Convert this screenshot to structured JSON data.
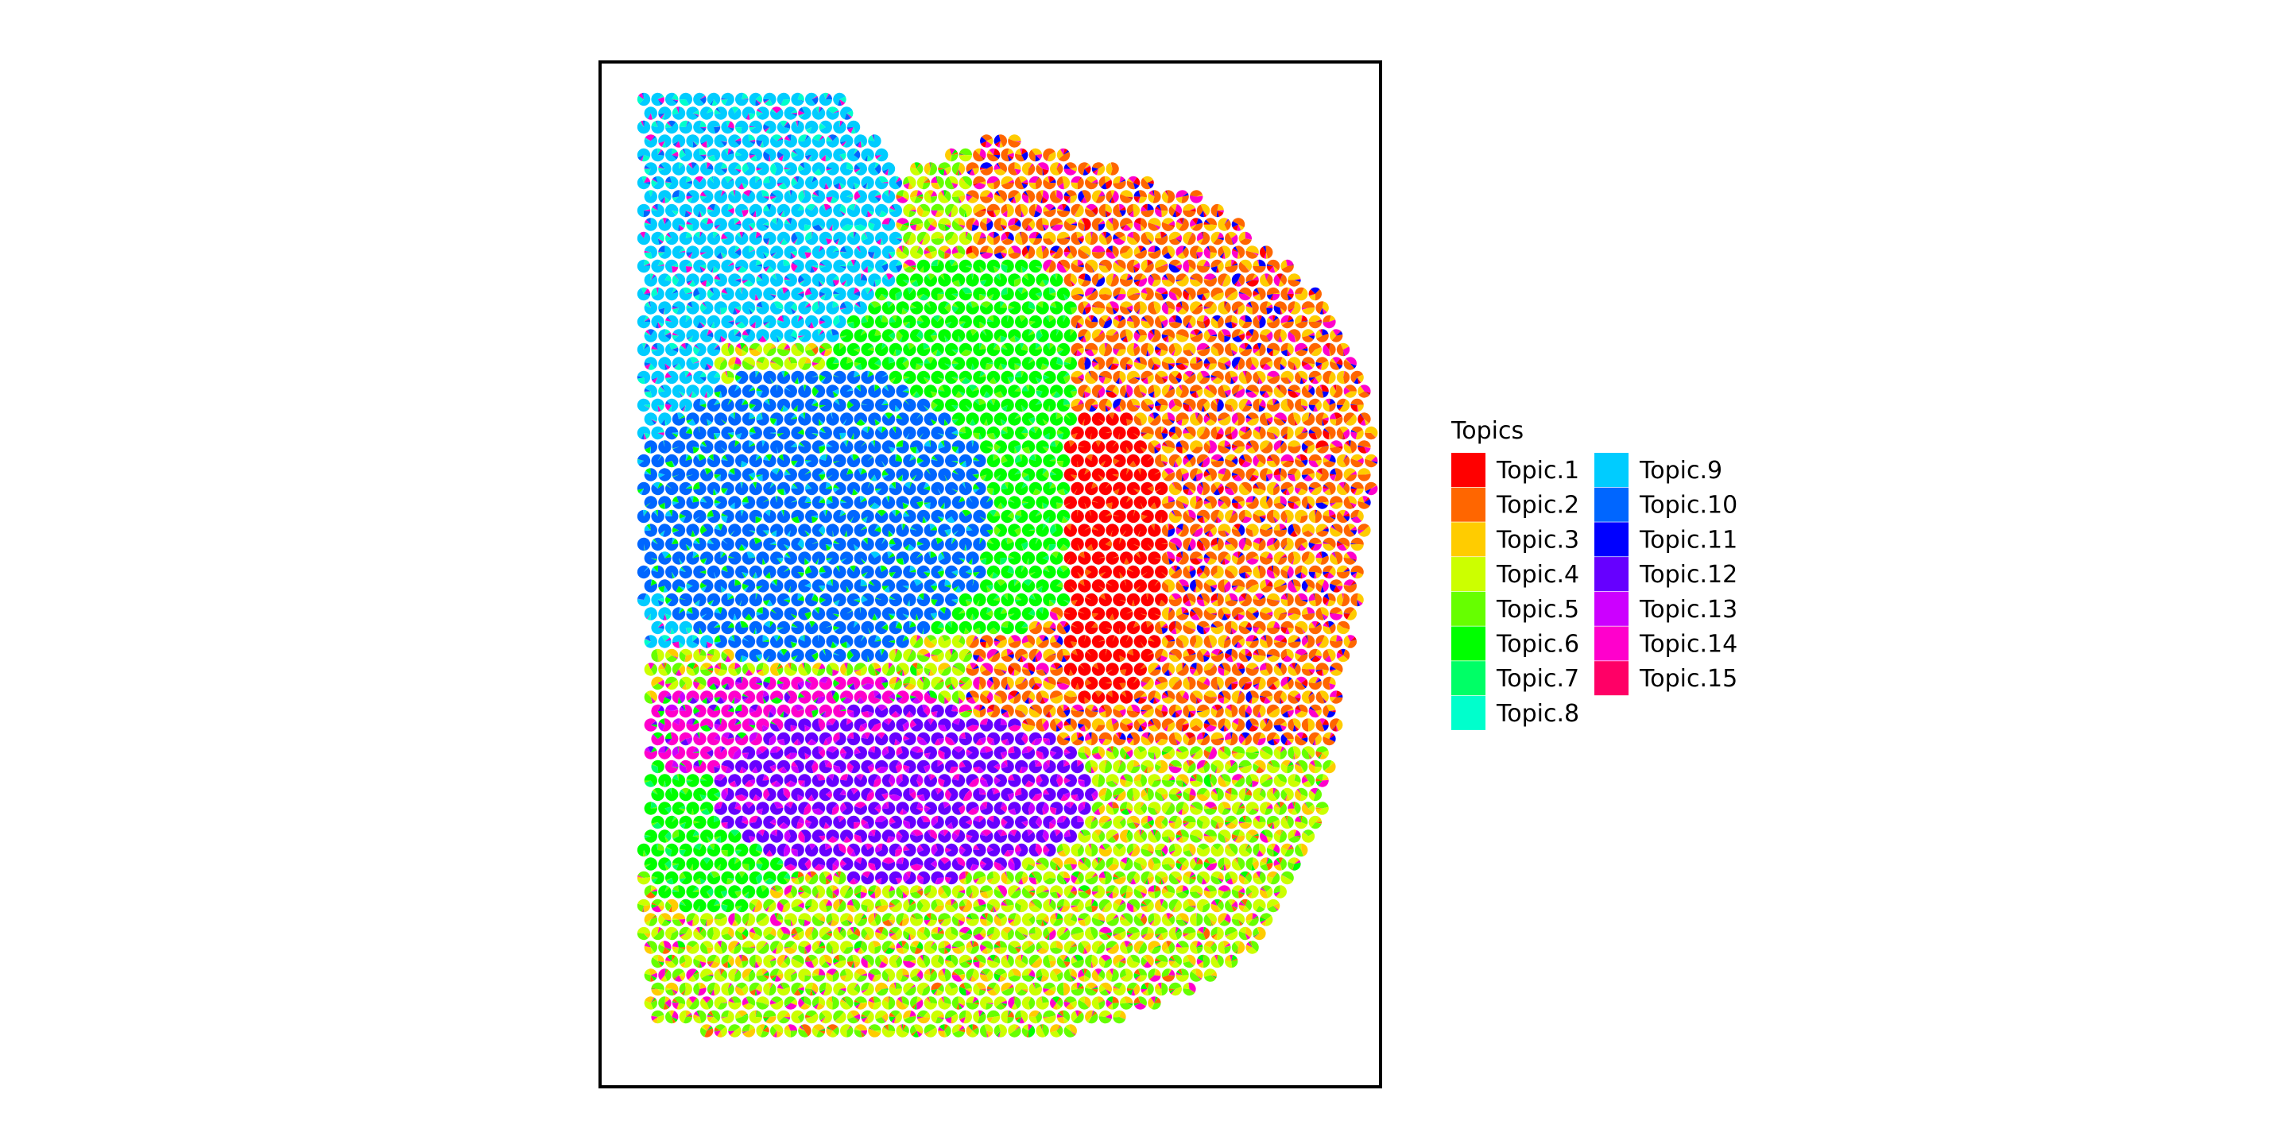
{
  "chart_data": {
    "type": "scatter",
    "subtype": "spatial-pie",
    "title": "",
    "xlabel": "",
    "ylabel": "",
    "axes_visible": false,
    "frame": true,
    "grid": false,
    "legend": {
      "title": "Topics",
      "position": "right",
      "columns": 2,
      "entries": [
        {
          "name": "Topic.1",
          "color": "#FF0000"
        },
        {
          "name": "Topic.2",
          "color": "#FF6600"
        },
        {
          "name": "Topic.3",
          "color": "#FFCC00"
        },
        {
          "name": "Topic.4",
          "color": "#CCFF00"
        },
        {
          "name": "Topic.5",
          "color": "#66FF00"
        },
        {
          "name": "Topic.6",
          "color": "#00FF00"
        },
        {
          "name": "Topic.7",
          "color": "#00FF66"
        },
        {
          "name": "Topic.8",
          "color": "#00FFCC"
        },
        {
          "name": "Topic.9",
          "color": "#00CCFF"
        },
        {
          "name": "Topic.10",
          "color": "#0066FF"
        },
        {
          "name": "Topic.11",
          "color": "#0000FF"
        },
        {
          "name": "Topic.12",
          "color": "#6600FF"
        },
        {
          "name": "Topic.13",
          "color": "#CC00FF"
        },
        {
          "name": "Topic.14",
          "color": "#FF00CC"
        },
        {
          "name": "Topic.15",
          "color": "#FF0066"
        }
      ]
    },
    "spot_grid": {
      "layout": "hexagonal",
      "rows": 70,
      "columns": 54
    },
    "regions": [
      {
        "topic": "Topic.9",
        "dominance": 0.75,
        "mix": [
          "Topic.8",
          "Topic.14",
          "Topic.10"
        ]
      },
      {
        "topic": "Topic.10",
        "dominance": 0.85,
        "mix": [
          "Topic.9",
          "Topic.6"
        ]
      },
      {
        "topic": "Topic.6",
        "dominance": 0.8,
        "mix": [
          "Topic.7",
          "Topic.5"
        ]
      },
      {
        "topic": "Topic.1",
        "dominance": 0.95,
        "mix": [
          "Topic.2"
        ]
      },
      {
        "topic": "Topic.2",
        "dominance": 0.45,
        "mix": [
          "Topic.3",
          "Topic.14",
          "Topic.1",
          "Topic.11"
        ]
      },
      {
        "topic": "Topic.14",
        "dominance": 0.7,
        "mix": [
          "Topic.13",
          "Topic.12",
          "Topic.6"
        ]
      },
      {
        "topic": "Topic.12",
        "dominance": 0.7,
        "mix": [
          "Topic.13",
          "Topic.14"
        ]
      },
      {
        "topic": "Topic.5",
        "dominance": 0.35,
        "mix": [
          "Topic.4",
          "Topic.3",
          "Topic.14",
          "Topic.6",
          "Topic.2"
        ]
      }
    ]
  }
}
